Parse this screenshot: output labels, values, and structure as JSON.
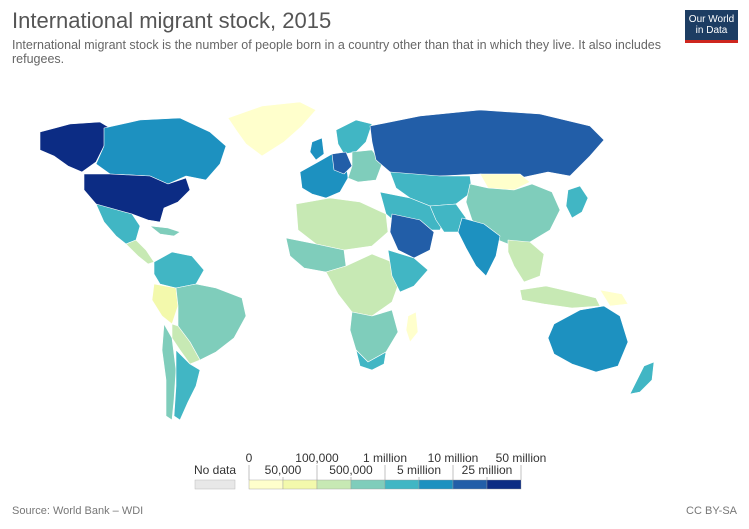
{
  "header": {
    "title": "International migrant stock, 2015",
    "subtitle": "International migrant stock is the number of people born in a country other than that in which they live. It also includes refugees."
  },
  "logo": {
    "line1": "Our World",
    "line2": "in Data"
  },
  "legend": {
    "no_data_label": "No data",
    "no_data_color": "#e8e8e8",
    "upper_ticks": [
      "0",
      "100,000",
      "1 million",
      "10 million",
      "50 million"
    ],
    "lower_ticks": [
      "50,000",
      "500,000",
      "5 million",
      "25 million"
    ],
    "bins": [
      {
        "color": "#ffffcc"
      },
      {
        "color": "#f3f9ac"
      },
      {
        "color": "#c7e9b4"
      },
      {
        "color": "#7fcdbb"
      },
      {
        "color": "#41b6c4"
      },
      {
        "color": "#1d91c0"
      },
      {
        "color": "#225ea8"
      },
      {
        "color": "#0c2c84"
      }
    ]
  },
  "footer": {
    "source": "Source: World Bank – WDI",
    "license": "CC BY-SA"
  }
}
